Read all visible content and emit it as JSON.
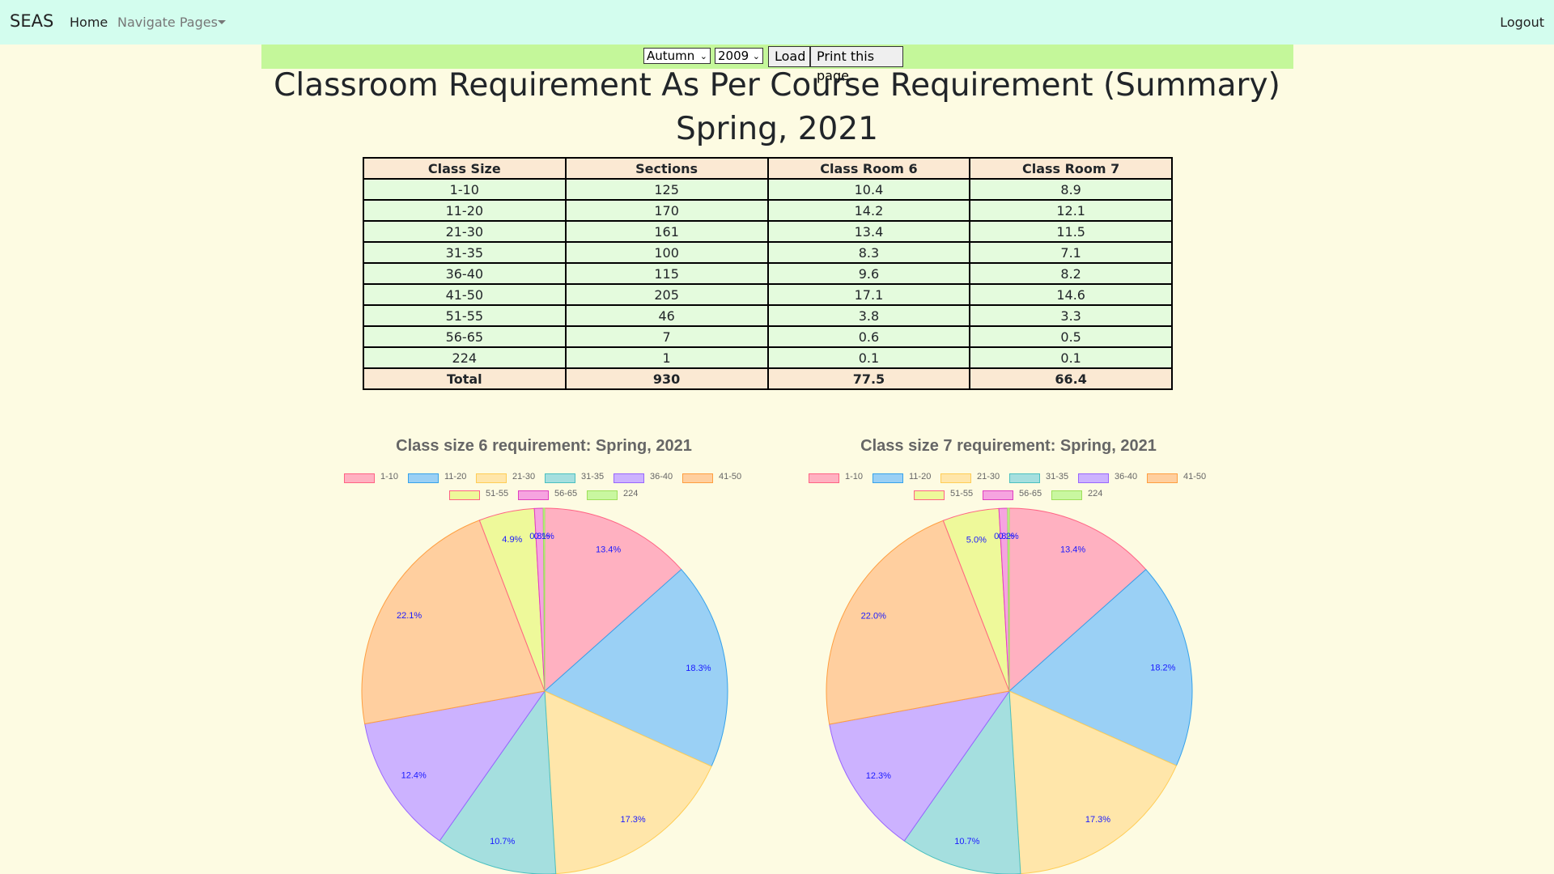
{
  "navbar": {
    "brand": "SEAS",
    "home": "Home",
    "navigate_pages": "Navigate Pages",
    "logout": "Logout"
  },
  "controls": {
    "season": "Autumn",
    "year": "2009",
    "load_label": "Load",
    "print_label": "Print this page"
  },
  "page": {
    "title_line1": "Classroom Requirement As Per Course Requirement (Summary)",
    "title_line2": "Spring, 2021"
  },
  "table": {
    "headers": [
      "Class Size",
      "Sections",
      "Class Room 6",
      "Class Room 7"
    ],
    "rows": [
      [
        "1-10",
        "125",
        "10.4",
        "8.9"
      ],
      [
        "11-20",
        "170",
        "14.2",
        "12.1"
      ],
      [
        "21-30",
        "161",
        "13.4",
        "11.5"
      ],
      [
        "31-35",
        "100",
        "8.3",
        "7.1"
      ],
      [
        "36-40",
        "115",
        "9.6",
        "8.2"
      ],
      [
        "41-50",
        "205",
        "17.1",
        "14.6"
      ],
      [
        "51-55",
        "46",
        "3.8",
        "3.3"
      ],
      [
        "56-65",
        "7",
        "0.6",
        "0.5"
      ],
      [
        "224",
        "1",
        "0.1",
        "0.1"
      ]
    ],
    "total": [
      "Total",
      "930",
      "77.5",
      "66.4"
    ]
  },
  "colors": {
    "slices": [
      "#ffb1c1",
      "#9ad0f5",
      "#ffe6aa",
      "#a5dfdf",
      "#ccb2ff",
      "#ffcf9f",
      "#eef99a",
      "#f6a4e0",
      "#c9f7a0"
    ],
    "borders": [
      "#ff6384",
      "#36a2eb",
      "#ffcd56",
      "#4bc0c0",
      "#9966ff",
      "#ff9f40",
      "#ff6384",
      "#e040c0",
      "#9ee05a"
    ],
    "pct_label": "#1a1aff"
  },
  "chart_data": [
    {
      "type": "pie",
      "title": "Class size 6 requirement: Spring, 2021",
      "categories": [
        "1-10",
        "11-20",
        "21-30",
        "31-35",
        "36-40",
        "41-50",
        "51-55",
        "56-65",
        "224"
      ],
      "values": [
        10.4,
        14.2,
        13.4,
        8.3,
        9.6,
        17.1,
        3.8,
        0.6,
        0.1
      ],
      "labels": [
        "13.4%",
        "18.3%",
        "17.3%",
        "10.7%",
        "12.4%",
        "22.1%",
        "4.9%",
        "0.8%",
        "0.1%"
      ],
      "legend": "top"
    },
    {
      "type": "pie",
      "title": "Class size 7 requirement: Spring, 2021",
      "categories": [
        "1-10",
        "11-20",
        "21-30",
        "31-35",
        "36-40",
        "41-50",
        "51-55",
        "56-65",
        "224"
      ],
      "values": [
        8.9,
        12.1,
        11.5,
        7.1,
        8.2,
        14.6,
        3.3,
        0.5,
        0.1
      ],
      "labels": [
        "13.4%",
        "18.2%",
        "17.3%",
        "10.7%",
        "12.3%",
        "22.0%",
        "5.0%",
        "0.8%",
        "0.2%"
      ],
      "legend": "top"
    }
  ]
}
